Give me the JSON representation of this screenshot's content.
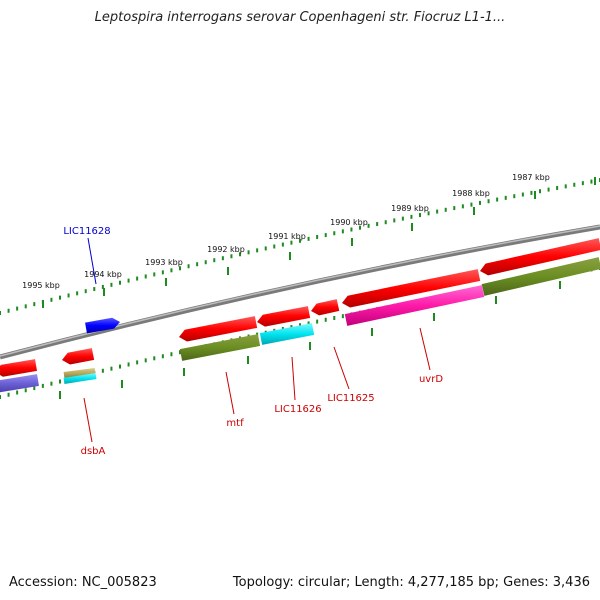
{
  "title": "Leptospira interrogans serovar Copenhageni str. Fiocruz L1-1...",
  "accession": "Accession: NC_005823",
  "summary": "Topology: circular; Length: 4,277,185 bp; Genes: 3,436",
  "colors": {
    "backbone": "#888888",
    "scale_ticks": "#1f8a1f",
    "label_red": "#cc0000",
    "label_blue": "#0000cc"
  },
  "scale_labels": [
    "1995 kbp",
    "1994 kbp",
    "1993 kbp",
    "1992 kbp",
    "1991 kbp",
    "1990 kbp",
    "1989 kbp",
    "1988 kbp",
    "1987 kbp"
  ],
  "gene_labels": [
    "LIC11628",
    "dsbA",
    "mtf",
    "LIC11626",
    "LIC11625",
    "uvrD"
  ],
  "features": [
    {
      "track": "forward",
      "color": "blue",
      "direction": "right"
    },
    {
      "track": "reverse",
      "color": "red",
      "direction": "left"
    },
    {
      "track": "reverse",
      "color": "red",
      "direction": "left"
    },
    {
      "track": "reverse",
      "color": "red",
      "direction": "left"
    },
    {
      "track": "reverse",
      "color": "red",
      "direction": "left"
    },
    {
      "track": "reverse",
      "color": "red",
      "direction": "left"
    },
    {
      "track": "reverse",
      "color": "red",
      "direction": "left"
    },
    {
      "track": "reverse",
      "color": "red",
      "direction": "left"
    },
    {
      "track": "cog",
      "color": "slate-blue"
    },
    {
      "track": "cog",
      "color": "khaki"
    },
    {
      "track": "cog",
      "color": "cyan"
    },
    {
      "track": "cog",
      "color": "olive"
    },
    {
      "track": "cog",
      "color": "cyan"
    },
    {
      "track": "cog",
      "color": "magenta"
    },
    {
      "track": "cog",
      "color": "olive"
    }
  ]
}
